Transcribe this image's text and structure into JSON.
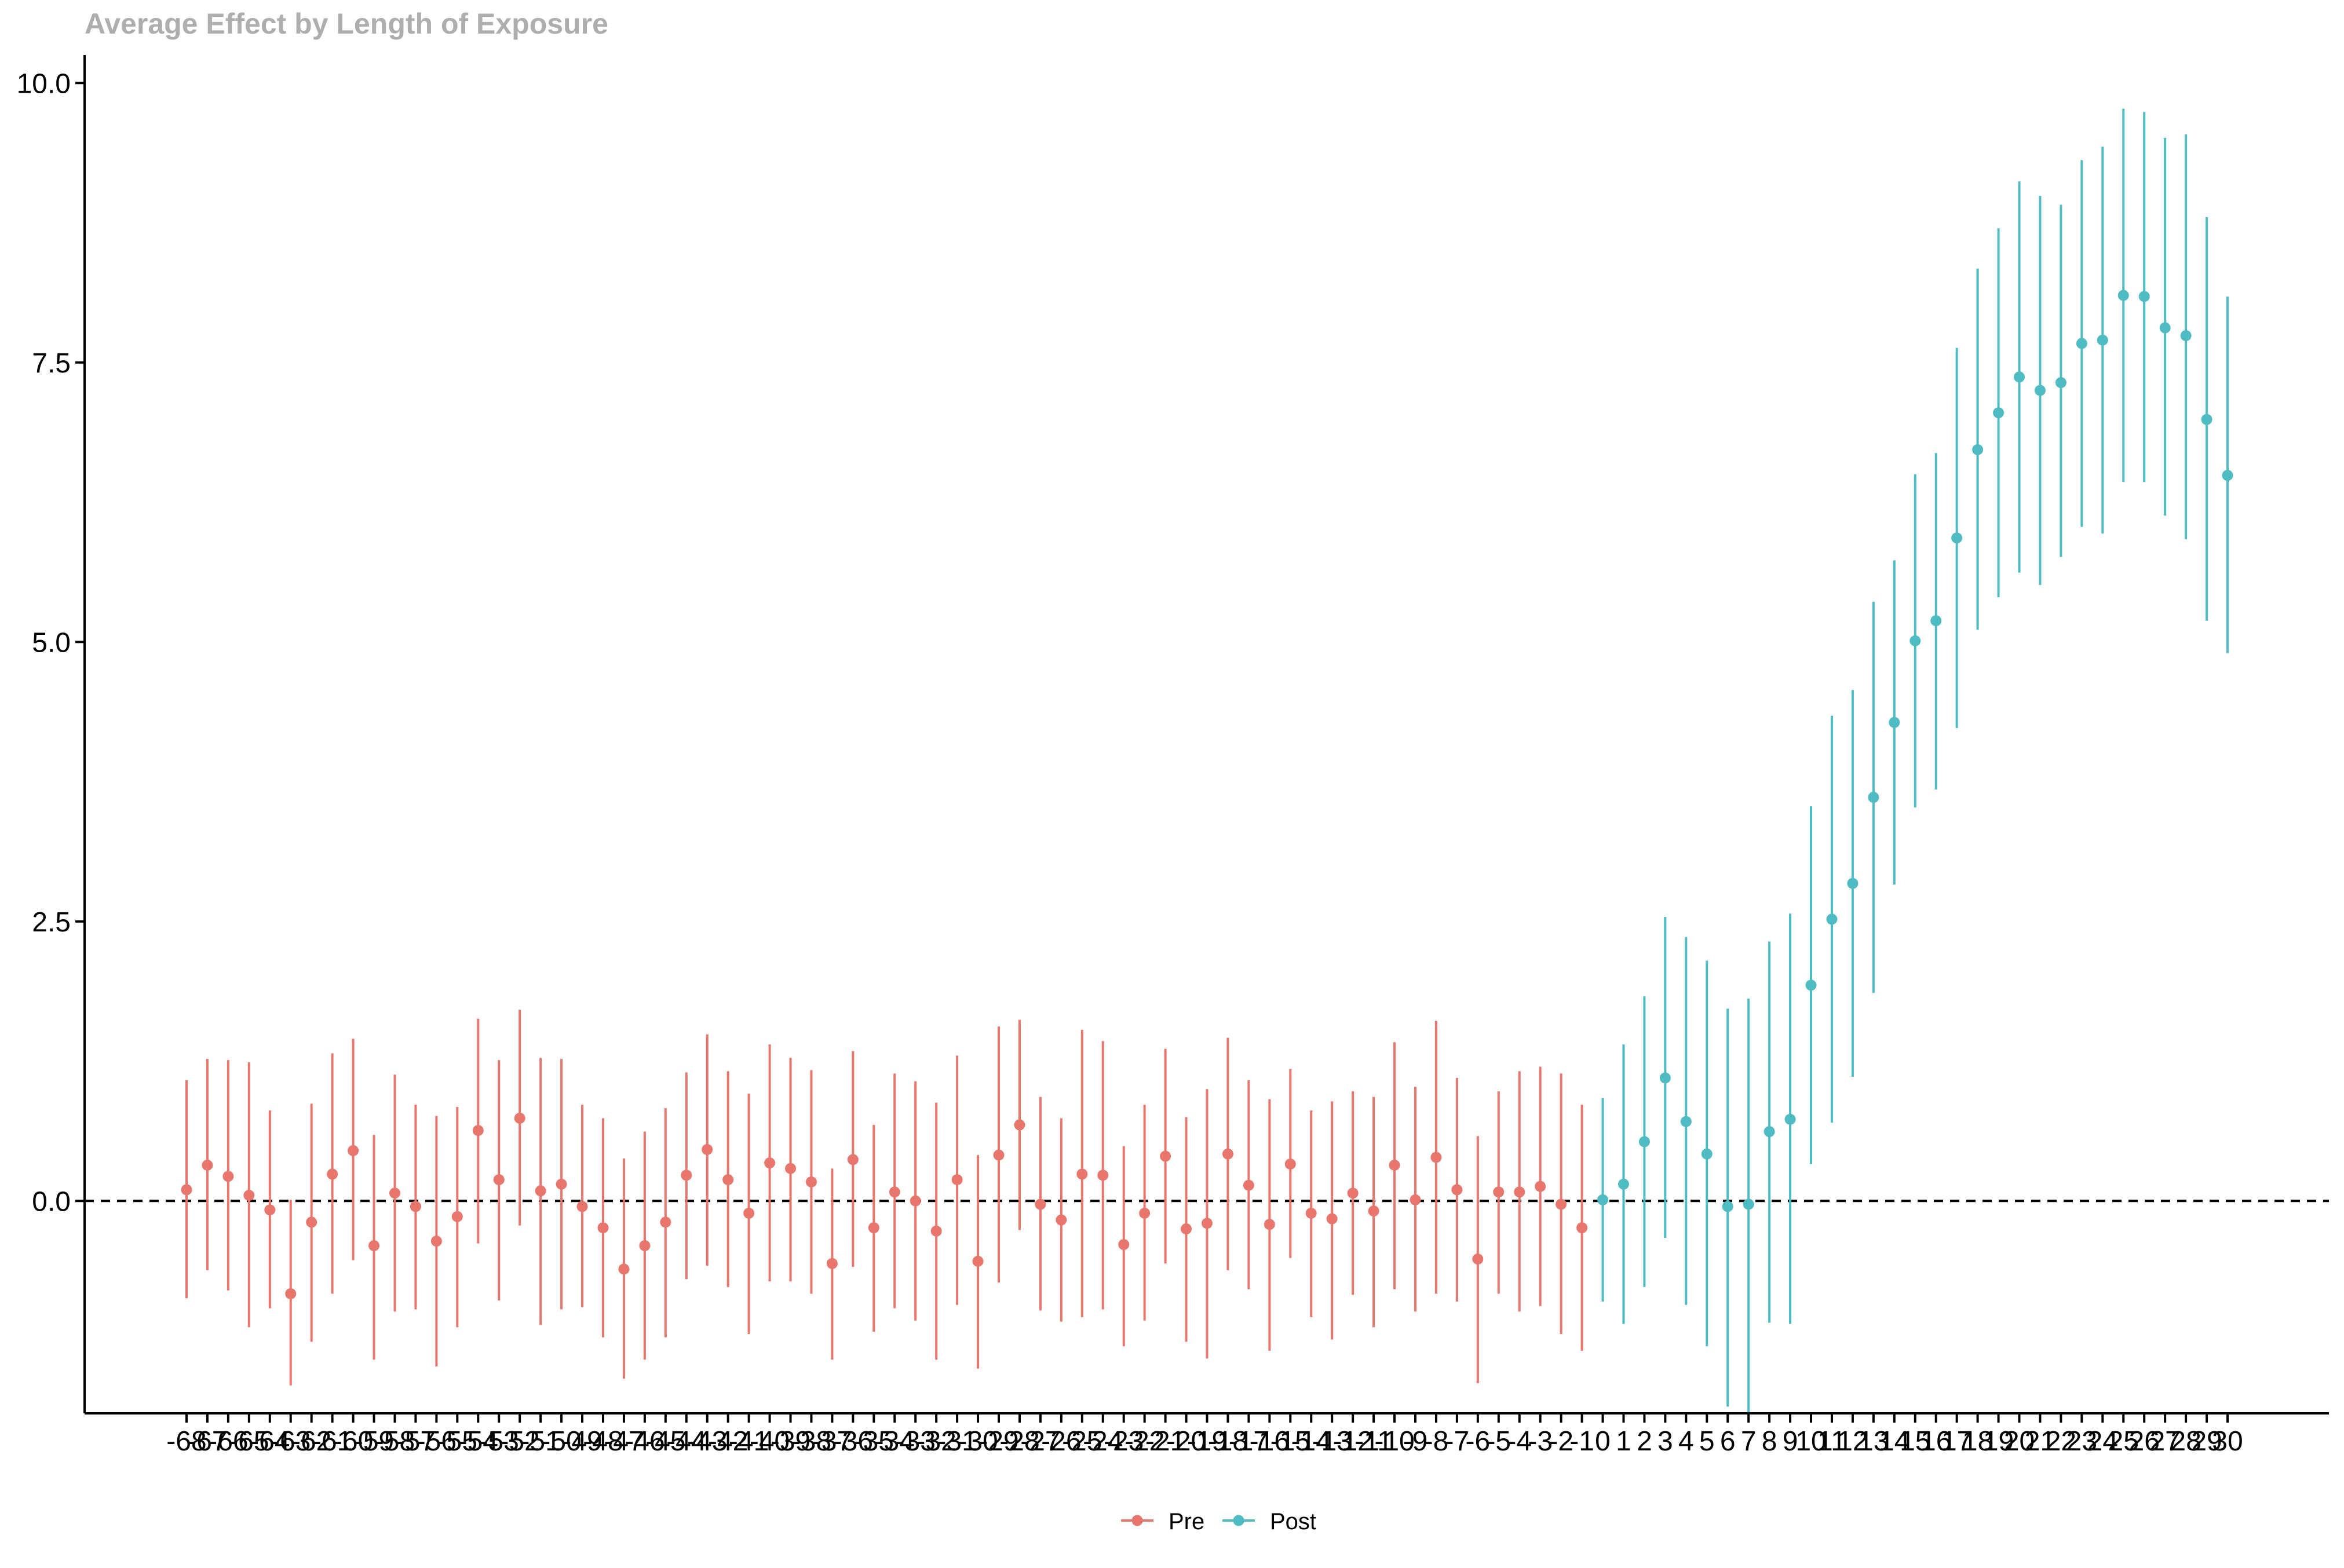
{
  "chart_data": {
    "type": "scatter",
    "title": "Average Effect by Length of Exposure",
    "xlabel": "",
    "ylabel": "",
    "ylim": [
      -1.9,
      10.25
    ],
    "yticks": [
      "0.0",
      "2.5",
      "5.0",
      "7.5",
      "10.0"
    ],
    "reference_line": {
      "y": 0,
      "style": "dashed"
    },
    "grid": false,
    "legend_position": "bottom",
    "legend": [
      {
        "label": "Pre",
        "color": "#E8766D"
      },
      {
        "label": "Post",
        "color": "#4EBCC2"
      }
    ],
    "series": [
      {
        "name": "Pre",
        "color": "#E8766D",
        "x": [
          -68,
          -67,
          -66,
          -65,
          -64,
          -63,
          -62,
          -61,
          -60,
          -59,
          -58,
          -57,
          -56,
          -55,
          -54,
          -53,
          -52,
          -51,
          -50,
          -49,
          -48,
          -47,
          -46,
          -45,
          -44,
          -43,
          -42,
          -41,
          -40,
          -39,
          -38,
          -37,
          -36,
          -35,
          -34,
          -33,
          -32,
          -31,
          -30,
          -29,
          -28,
          -27,
          -26,
          -25,
          -24,
          -23,
          -22,
          -21,
          -20,
          -19,
          -18,
          -17,
          -16,
          -15,
          -14,
          -13,
          -12,
          -11,
          -10,
          -9,
          -8,
          -7,
          -6,
          -5,
          -4,
          -3,
          -2,
          -1
        ],
        "y": [
          0.1,
          0.32,
          0.22,
          0.05,
          -0.08,
          -0.83,
          -0.19,
          0.24,
          0.45,
          -0.4,
          0.07,
          -0.05,
          -0.36,
          -0.14,
          0.63,
          0.19,
          0.74,
          0.09,
          0.15,
          -0.05,
          -0.24,
          -0.61,
          -0.4,
          -0.19,
          0.23,
          0.46,
          0.19,
          -0.11,
          0.34,
          0.29,
          0.17,
          -0.56,
          0.37,
          -0.24,
          0.08,
          0.0,
          -0.27,
          0.19,
          -0.54,
          0.41,
          0.68,
          -0.03,
          -0.17,
          0.24,
          0.23,
          -0.39,
          -0.11,
          0.4,
          -0.25,
          -0.2,
          0.42,
          0.14,
          -0.21,
          0.33,
          -0.11,
          -0.16,
          0.07,
          -0.09,
          0.32,
          0.01,
          0.39,
          0.1,
          -0.52,
          0.08,
          0.08,
          0.13,
          -0.03,
          -0.24
        ],
        "lower": [
          -0.87,
          -0.62,
          -0.8,
          -1.13,
          -0.96,
          -1.65,
          -1.26,
          -0.83,
          -0.53,
          -1.42,
          -0.99,
          -0.97,
          -1.48,
          -1.13,
          -0.38,
          -0.89,
          -0.22,
          -1.11,
          -0.97,
          -0.95,
          -1.22,
          -1.59,
          -1.42,
          -1.22,
          -0.7,
          -0.58,
          -0.77,
          -1.19,
          -0.72,
          -0.72,
          -0.83,
          -1.42,
          -0.59,
          -1.17,
          -0.96,
          -1.07,
          -1.42,
          -0.93,
          -1.5,
          -0.73,
          -0.26,
          -0.98,
          -1.08,
          -1.04,
          -0.97,
          -1.3,
          -1.07,
          -0.56,
          -1.26,
          -1.41,
          -0.62,
          -0.79,
          -1.34,
          -0.51,
          -1.04,
          -1.24,
          -0.84,
          -1.13,
          -0.79,
          -0.99,
          -0.83,
          -0.9,
          -1.63,
          -0.83,
          -0.99,
          -0.94,
          -1.19,
          -1.34
        ],
        "upper": [
          1.08,
          1.27,
          1.26,
          1.24,
          0.81,
          0.01,
          0.87,
          1.32,
          1.45,
          0.59,
          1.13,
          0.86,
          0.76,
          0.84,
          1.63,
          1.26,
          1.71,
          1.28,
          1.27,
          0.86,
          0.74,
          0.38,
          0.62,
          0.83,
          1.15,
          1.49,
          1.16,
          0.96,
          1.4,
          1.28,
          1.17,
          0.29,
          1.34,
          0.68,
          1.14,
          1.07,
          0.88,
          1.3,
          0.41,
          1.56,
          1.62,
          0.93,
          0.74,
          1.53,
          1.43,
          0.49,
          0.86,
          1.36,
          0.75,
          1.0,
          1.46,
          1.08,
          0.91,
          1.18,
          0.81,
          0.89,
          0.98,
          0.93,
          1.42,
          1.02,
          1.61,
          1.1,
          0.58,
          0.98,
          1.16,
          1.2,
          1.14,
          0.86
        ]
      },
      {
        "name": "Post",
        "color": "#4EBCC2",
        "x": [
          0,
          1,
          2,
          3,
          4,
          5,
          6,
          7,
          8,
          9,
          10,
          11,
          12,
          13,
          14,
          15,
          16,
          17,
          18,
          19,
          20,
          21,
          22,
          23,
          24,
          25,
          26,
          27,
          28,
          29,
          30
        ],
        "y": [
          0.01,
          0.15,
          0.53,
          1.1,
          0.71,
          0.42,
          -0.05,
          -0.03,
          0.62,
          0.73,
          1.93,
          2.52,
          2.84,
          3.61,
          4.28,
          5.01,
          5.19,
          5.93,
          6.72,
          7.05,
          7.37,
          7.25,
          7.32,
          7.67,
          7.7,
          8.1,
          8.09,
          7.81,
          7.74,
          6.99,
          6.49
        ],
        "lower": [
          -0.9,
          -1.1,
          -0.77,
          -0.33,
          -0.93,
          -1.3,
          -1.84,
          -1.89,
          -1.09,
          -1.1,
          0.33,
          0.7,
          1.11,
          1.86,
          2.83,
          3.52,
          3.68,
          4.23,
          5.11,
          5.4,
          5.62,
          5.51,
          5.76,
          6.03,
          5.97,
          6.43,
          6.43,
          6.13,
          5.92,
          5.19,
          4.9
        ],
        "upper": [
          0.92,
          1.4,
          1.83,
          2.54,
          2.36,
          2.15,
          1.72,
          1.81,
          2.32,
          2.57,
          3.53,
          4.34,
          4.57,
          5.36,
          5.73,
          6.5,
          6.69,
          7.63,
          8.34,
          8.7,
          9.12,
          8.99,
          8.91,
          9.31,
          9.43,
          9.77,
          9.74,
          9.51,
          9.54,
          8.8,
          8.09
        ]
      }
    ]
  }
}
